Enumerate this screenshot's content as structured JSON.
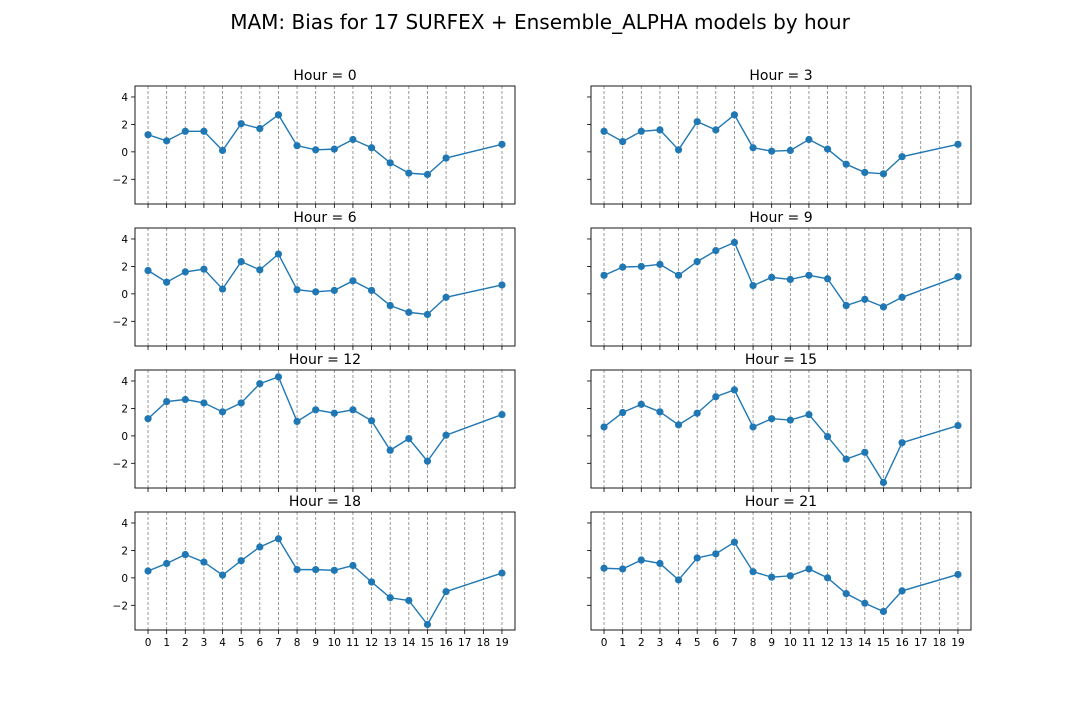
{
  "figure": {
    "title": "MAM: Bias for 17 SURFEX + Ensemble_ALPHA models by hour"
  },
  "colors": {
    "series": "#1f77b4",
    "grid": "#808080",
    "axes": "#000000",
    "background": "#ffffff"
  },
  "chart_data": {
    "type": "line",
    "layout": "4 rows x 2 columns, shared x and y axes",
    "x": [
      0,
      1,
      2,
      3,
      4,
      5,
      6,
      7,
      8,
      9,
      10,
      11,
      12,
      13,
      14,
      15,
      16,
      19
    ],
    "xticks": [
      "0",
      "1",
      "2",
      "3",
      "4",
      "5",
      "6",
      "7",
      "8",
      "9",
      "10",
      "11",
      "12",
      "13",
      "14",
      "15",
      "16",
      "17",
      "18",
      "19"
    ],
    "xlim": [
      -0.7,
      19.7
    ],
    "yticks": [
      "4",
      "2",
      "0",
      "−2"
    ],
    "ylim": [
      -3.8,
      4.8
    ],
    "grid": "vertical dashed lines at each x tick",
    "marker": "circle",
    "panels": [
      {
        "title": "Hour = 0",
        "values": [
          1.25,
          0.8,
          1.5,
          1.5,
          0.1,
          2.05,
          1.7,
          2.7,
          0.45,
          0.15,
          0.2,
          0.9,
          0.3,
          -0.8,
          -1.55,
          -1.65,
          -0.45,
          0.55
        ]
      },
      {
        "title": "Hour = 3",
        "values": [
          1.5,
          0.75,
          1.5,
          1.6,
          0.15,
          2.2,
          1.6,
          2.7,
          0.3,
          0.05,
          0.1,
          0.9,
          0.2,
          -0.9,
          -1.5,
          -1.6,
          -0.35,
          0.55
        ]
      },
      {
        "title": "Hour = 6",
        "values": [
          1.7,
          0.85,
          1.6,
          1.8,
          0.35,
          2.35,
          1.75,
          2.9,
          0.3,
          0.15,
          0.25,
          0.95,
          0.25,
          -0.85,
          -1.35,
          -1.5,
          -0.25,
          0.65
        ]
      },
      {
        "title": "Hour = 9",
        "values": [
          1.35,
          1.95,
          2.0,
          2.15,
          1.35,
          2.35,
          3.15,
          3.75,
          0.6,
          1.2,
          1.05,
          1.35,
          1.1,
          -0.85,
          -0.4,
          -0.95,
          -0.25,
          1.25
        ]
      },
      {
        "title": "Hour = 12",
        "values": [
          1.25,
          2.5,
          2.65,
          2.4,
          1.75,
          2.4,
          3.8,
          4.3,
          1.05,
          1.9,
          1.65,
          1.9,
          1.1,
          -1.05,
          -0.2,
          -1.85,
          0.05,
          1.55
        ]
      },
      {
        "title": "Hour = 15",
        "values": [
          0.65,
          1.7,
          2.3,
          1.75,
          0.8,
          1.65,
          2.85,
          3.35,
          0.65,
          1.25,
          1.15,
          1.55,
          -0.05,
          -1.7,
          -1.2,
          -3.4,
          -0.5,
          0.75
        ]
      },
      {
        "title": "Hour = 18",
        "values": [
          0.5,
          1.05,
          1.7,
          1.15,
          0.2,
          1.25,
          2.25,
          2.85,
          0.6,
          0.6,
          0.55,
          0.9,
          -0.3,
          -1.45,
          -1.65,
          -3.4,
          -1.0,
          0.35
        ]
      },
      {
        "title": "Hour = 21",
        "values": [
          0.7,
          0.65,
          1.3,
          1.05,
          -0.15,
          1.45,
          1.75,
          2.6,
          0.45,
          0.05,
          0.15,
          0.65,
          0.0,
          -1.15,
          -1.85,
          -2.45,
          -0.95,
          0.25
        ]
      }
    ]
  }
}
